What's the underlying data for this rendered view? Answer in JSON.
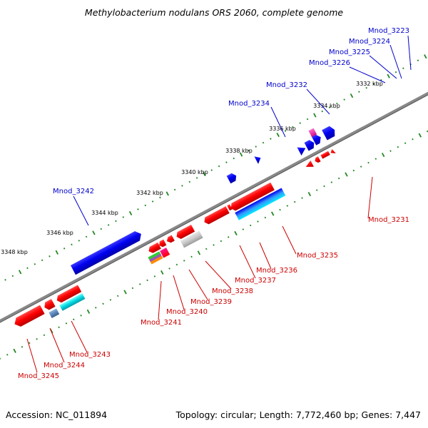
{
  "title": "Methylobacterium nodulans ORS 2060, complete genome",
  "footer": {
    "accession": "Accession: NC_011894",
    "summary": "Topology: circular; Length: 7,772,460 bp; Genes: 7,447"
  },
  "scale_labels": [
    "3332 kbp",
    "3334 kbp",
    "3336 kbp",
    "3338 kbp",
    "3340 kbp",
    "3342 kbp",
    "3344 kbp",
    "3346 kbp",
    "3348 kbp"
  ],
  "genes_top": [
    "Mnod_3223",
    "Mnod_3224",
    "Mnod_3225",
    "Mnod_3226",
    "Mnod_3232",
    "Mnod_3234",
    "Mnod_3242"
  ],
  "genes_bottom": [
    "Mnod_3231",
    "Mnod_3235",
    "Mnod_3236",
    "Mnod_3237",
    "Mnod_3238",
    "Mnod_3239",
    "Mnod_3240",
    "Mnod_3241",
    "Mnod_3243",
    "Mnod_3244",
    "Mnod_3245"
  ],
  "colors": {
    "forward_label": "#0000cc",
    "reverse_label": "#cc0000",
    "forward_gene": "#0000ee",
    "reverse_gene": "#ee0000",
    "backbone": "#888888",
    "tick": "#228822"
  }
}
